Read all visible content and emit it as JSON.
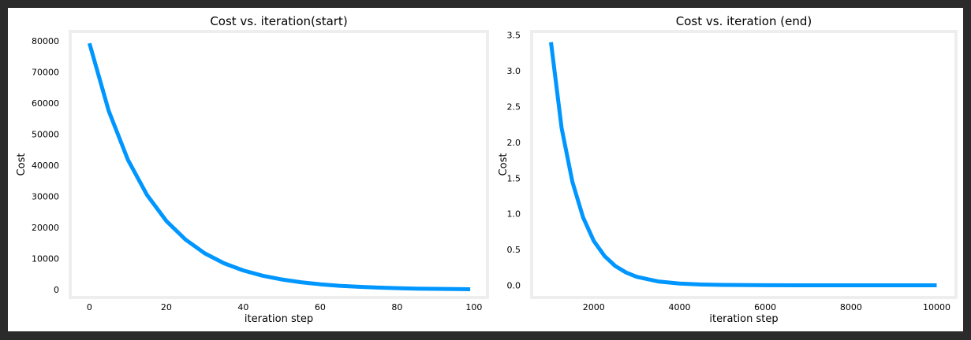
{
  "colors": {
    "line": "#0096ff",
    "plot_frame": "#eeeeee",
    "figure_bg": "#ffffff",
    "outer_bg": "#2b2b2b"
  },
  "chart_data": [
    {
      "type": "line",
      "title": "Cost vs. iteration(start)",
      "xlabel": "iteration step",
      "ylabel": "Cost",
      "xlim": [
        -5,
        103.5
      ],
      "ylim": [
        -2500,
        83000
      ],
      "xticks": [
        0,
        20,
        40,
        60,
        80,
        100
      ],
      "xtick_labels": [
        "0",
        "20",
        "40",
        "60",
        "80",
        "100"
      ],
      "yticks": [
        0,
        10000,
        20000,
        30000,
        40000,
        50000,
        60000,
        70000,
        80000
      ],
      "ytick_labels": [
        "0",
        "10000",
        "20000",
        "30000",
        "40000",
        "50000",
        "60000",
        "70000",
        "80000"
      ],
      "grid": false,
      "series": [
        {
          "x": [
            0,
            5,
            10,
            15,
            20,
            25,
            30,
            35,
            40,
            45,
            50,
            55,
            60,
            65,
            70,
            75,
            80,
            85,
            90,
            95,
            99
          ],
          "y": [
            79200,
            57500,
            41800,
            30400,
            22100,
            16100,
            11700,
            8500,
            6200,
            4500,
            3300,
            2400,
            1750,
            1270,
            930,
            680,
            500,
            360,
            270,
            200,
            160
          ]
        }
      ]
    },
    {
      "type": "line",
      "title": "Cost vs. iteration (end)",
      "xlabel": "iteration step",
      "ylabel": "Cost",
      "xlim": [
        550,
        10450
      ],
      "ylim": [
        -0.17,
        3.55
      ],
      "xticks": [
        2000,
        4000,
        6000,
        8000,
        10000
      ],
      "xtick_labels": [
        "2000",
        "4000",
        "6000",
        "8000",
        "10000"
      ],
      "yticks": [
        0.0,
        0.5,
        1.0,
        1.5,
        2.0,
        2.5,
        3.0,
        3.5
      ],
      "ytick_labels": [
        "0.0",
        "0.5",
        "1.0",
        "1.5",
        "2.0",
        "2.5",
        "3.0",
        "3.5"
      ],
      "grid": false,
      "series": [
        {
          "x": [
            1000,
            1250,
            1500,
            1750,
            2000,
            2250,
            2500,
            2750,
            3000,
            3500,
            4000,
            4500,
            5000,
            6000,
            7000,
            8000,
            9000,
            10000
          ],
          "y": [
            3.4,
            2.2,
            1.45,
            0.95,
            0.62,
            0.41,
            0.27,
            0.18,
            0.12,
            0.055,
            0.025,
            0.012,
            0.006,
            0.002,
            0.001,
            0.0005,
            0.0002,
            0.0001
          ]
        }
      ]
    }
  ]
}
